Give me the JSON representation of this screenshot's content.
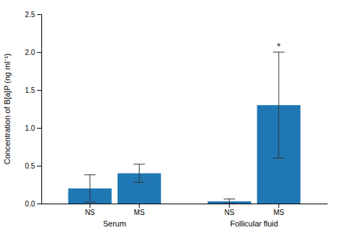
{
  "chart_data": {
    "type": "bar",
    "categories": [
      "NS",
      "MS",
      "NS",
      "MS"
    ],
    "groups": [
      "Serum",
      "Follicular fluid"
    ],
    "values": [
      0.2,
      0.4,
      0.03,
      1.3
    ],
    "errors": [
      0.18,
      0.12,
      0.03,
      0.7
    ],
    "ylabel": "Concentration of B[a]P (ng ml⁻¹)",
    "ylim": [
      0,
      2.5
    ],
    "yticks": [
      {
        "value": 0.0,
        "label": "0.0"
      },
      0.5,
      {
        "value": 1.0,
        "label": "1.0"
      },
      1.5,
      {
        "value": 2.0,
        "label": "2.0"
      },
      2.5
    ],
    "annotations": [
      {
        "text": "*",
        "at": 3
      }
    ]
  }
}
